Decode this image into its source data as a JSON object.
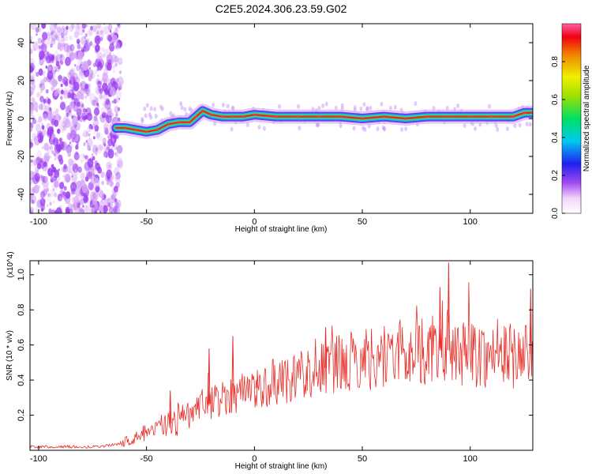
{
  "title": "C2E5.2024.306.23.59.G02",
  "chart_data": [
    {
      "type": "heatmap",
      "xlabel": "Height of straight line (km)",
      "ylabel": "Frequency (Hz)",
      "xlim": [
        -104,
        129
      ],
      "ylim": [
        -50,
        50
      ],
      "x_ticks": [
        "-100",
        "-50",
        "0",
        "50",
        "100"
      ],
      "y_ticks": [
        "-40",
        "-20",
        "0",
        "20",
        "40"
      ],
      "colorbar": {
        "label": "Normalized spectral amplitude",
        "range": [
          0.0,
          1.0
        ],
        "ticks": [
          "0.0",
          "0.2",
          "0.4",
          "0.6",
          "0.8"
        ]
      },
      "ridge": {
        "description": "frequency of peak amplitude vs height",
        "x": [
          -64,
          -60,
          -55,
          -50,
          -45,
          -40,
          -35,
          -30,
          -27,
          -24,
          -20,
          -15,
          -10,
          -5,
          0,
          10,
          20,
          30,
          40,
          50,
          60,
          70,
          80,
          90,
          100,
          110,
          120,
          125,
          129
        ],
        "y": [
          -5,
          -5,
          -6,
          -7,
          -6,
          -3,
          -2,
          -2,
          1,
          4,
          2,
          1,
          1,
          1,
          2,
          1,
          1,
          1,
          1,
          0,
          1,
          0,
          1,
          1,
          1,
          1,
          1,
          3,
          3
        ]
      },
      "noise_region": {
        "x_from": -104,
        "x_to": -62
      }
    },
    {
      "type": "line",
      "xlabel": "Height of straight line (km)",
      "ylabel": "SNR (10 * v/v)",
      "y_multiplier": "(x10^4)",
      "xlim": [
        -104,
        129
      ],
      "ylim": [
        0,
        1.08
      ],
      "x_ticks": [
        "-100",
        "-50",
        "0",
        "50",
        "100"
      ],
      "y_ticks": [
        "0.2",
        "0.4",
        "0.6",
        "0.8",
        "1.0"
      ],
      "series": [
        {
          "color": "#e8302a",
          "x": [
            -104,
            -90,
            -75,
            -65,
            -60,
            -55,
            -50,
            -45,
            -40,
            -35,
            -30,
            -25,
            -20,
            -15,
            -10,
            -5,
            0,
            10,
            20,
            30,
            40,
            50,
            60,
            70,
            80,
            90,
            100,
            110,
            120,
            129
          ],
          "y": [
            0.02,
            0.02,
            0.02,
            0.03,
            0.05,
            0.07,
            0.1,
            0.12,
            0.15,
            0.17,
            0.2,
            0.24,
            0.27,
            0.3,
            0.32,
            0.34,
            0.35,
            0.39,
            0.43,
            0.46,
            0.49,
            0.52,
            0.54,
            0.56,
            0.57,
            0.57,
            0.55,
            0.54,
            0.54,
            0.55
          ]
        }
      ],
      "spikes": [
        {
          "x": -50,
          "y": 0.1
        },
        {
          "x": -39,
          "y": 0.34
        },
        {
          "x": -21,
          "y": 0.58
        },
        {
          "x": -10,
          "y": 0.65
        },
        {
          "x": 1,
          "y": 0.4
        },
        {
          "x": 33,
          "y": 0.7
        },
        {
          "x": 86,
          "y": 0.93
        },
        {
          "x": 90,
          "y": 1.07
        },
        {
          "x": 128,
          "y": 0.92
        }
      ]
    }
  ]
}
